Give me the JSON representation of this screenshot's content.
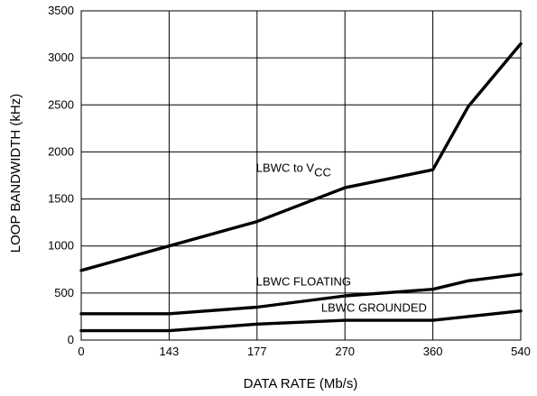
{
  "chart_data": {
    "type": "line",
    "xlabel": "DATA RATE (Mb/s)",
    "ylabel": "LOOP BANDWIDTH (kHz)",
    "categories": [
      "0",
      "143",
      "177",
      "270",
      "360",
      "540"
    ],
    "ylim": [
      0,
      3500
    ],
    "yticks": [
      0,
      500,
      1000,
      1500,
      2000,
      2500,
      3000,
      3500
    ],
    "grid": true,
    "series": [
      {
        "name": "LBWC to VCC",
        "label_main": "LBWC to V",
        "label_sub": "CC",
        "points": [
          [
            0,
            740
          ],
          [
            1,
            1000
          ],
          [
            2,
            1260
          ],
          [
            2.5,
            1440
          ],
          [
            3,
            1620
          ],
          [
            4,
            1810
          ],
          [
            4.4,
            2480
          ],
          [
            5,
            3150
          ]
        ]
      },
      {
        "name": "LBWC FLOATING",
        "label_main": "LBWC FLOATING",
        "points": [
          [
            0,
            280
          ],
          [
            1,
            280
          ],
          [
            2,
            350
          ],
          [
            3,
            470
          ],
          [
            4,
            540
          ],
          [
            4.4,
            630
          ],
          [
            5,
            700
          ]
        ]
      },
      {
        "name": "LBWC GROUNDED",
        "label_main": "LBWC GROUNDED",
        "points": [
          [
            0,
            100
          ],
          [
            1,
            100
          ],
          [
            2,
            170
          ],
          [
            3,
            210
          ],
          [
            4,
            210
          ],
          [
            4.4,
            250
          ],
          [
            5,
            310
          ]
        ]
      }
    ]
  }
}
